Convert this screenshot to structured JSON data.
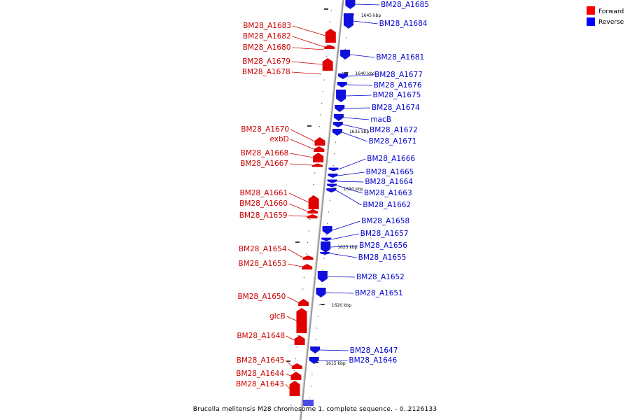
{
  "legend": {
    "items": [
      {
        "label": "Forward",
        "color": "#ff0000"
      },
      {
        "label": "Reverse",
        "color": "#0000ff"
      }
    ]
  },
  "caption": "Brucella melitensis M28 chromosome 1, complete sequence. - 0..2126133",
  "colors": {
    "forward": "#e00000",
    "reverse": "#1010dd",
    "forward_label": "#cc0000",
    "reverse_label": "#0000cc",
    "axis": "#999999"
  },
  "ticks": [
    "1645 kbp",
    "1640 kbp",
    "1635 kbp",
    "1630 kbp",
    "1625 kbp",
    "1620 kbp",
    "1615 kbp"
  ],
  "forward_genes": [
    "BM28_A1683",
    "BM28_A1682",
    "BM28_A1680",
    "BM28_A1679",
    "BM28_A1678",
    "BM28_A1670",
    "exbD",
    "BM28_A1668",
    "BM28_A1667",
    "BM28_A1661",
    "BM28_A1660",
    "BM28_A1659",
    "BM28_A1654",
    "BM28_A1653",
    "BM28_A1650",
    "glcB",
    "BM28_A1648",
    "BM28_A1645",
    "BM28_A1644",
    "BM28_A1643"
  ],
  "reverse_genes": [
    "BM28_A1685",
    "BM28_A1684",
    "BM28_A1681",
    "BM28_A1677",
    "BM28_A1676",
    "BM28_A1675",
    "BM28_A1674",
    "macB",
    "BM28_A1672",
    "BM28_A1671",
    "BM28_A1666",
    "BM28_A1665",
    "BM28_A1664",
    "BM28_A1663",
    "BM28_A1662",
    "BM28_A1658",
    "BM28_A1657",
    "BM28_A1656",
    "BM28_A1655",
    "BM28_A1652",
    "BM28_A1651",
    "BM28_A1647",
    "BM28_A1646"
  ]
}
